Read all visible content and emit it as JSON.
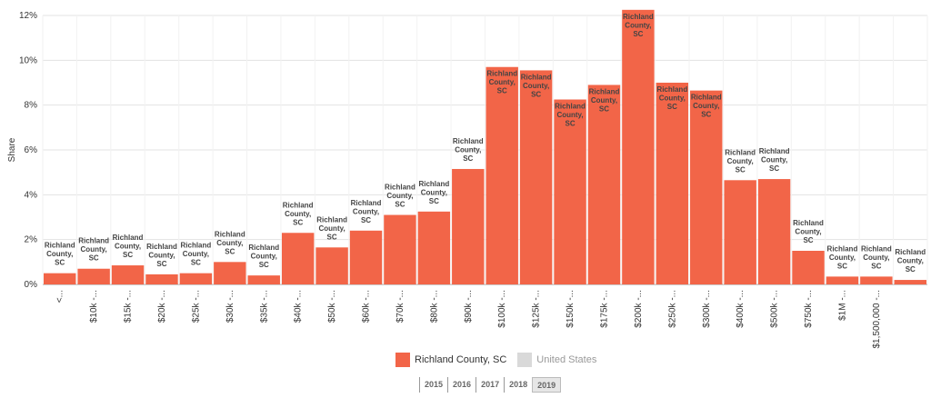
{
  "chart_data": {
    "type": "bar",
    "ylabel": "Share",
    "ylim": [
      0,
      12
    ],
    "yticks": [
      0,
      2,
      4,
      6,
      8,
      10,
      12
    ],
    "ytick_suffix": "%",
    "grid": true,
    "categories": [
      "<...",
      "$10k -...",
      "$15k -...",
      "$20k -...",
      "$25k -...",
      "$30k -...",
      "$35k -...",
      "$40k -...",
      "$50k -...",
      "$60k -...",
      "$70k -...",
      "$80k -...",
      "$90k -...",
      "$100k -...",
      "$125k -...",
      "$150k -...",
      "$175k -...",
      "$200k -...",
      "$250k -...",
      "$300k -...",
      "$400k -...",
      "$500k -...",
      "$750k -...",
      "$1M -...",
      "$1,500,000 -...",
      ""
    ],
    "series": [
      {
        "name": "Richland County, SC",
        "color": "#f26548",
        "values": [
          0.5,
          0.7,
          0.85,
          0.45,
          0.5,
          1.0,
          0.4,
          2.3,
          1.65,
          2.4,
          3.1,
          3.25,
          5.15,
          9.7,
          9.55,
          8.25,
          8.9,
          12.25,
          9.0,
          8.65,
          4.65,
          4.7,
          1.5,
          0.35,
          0.35,
          0.2
        ],
        "bar_label": "Richland County, SC"
      }
    ]
  },
  "legend": {
    "items": [
      {
        "label": "Richland County, SC",
        "color": "#f26548",
        "active": true
      },
      {
        "label": "United States",
        "color": "#d9d9d9",
        "active": false
      }
    ]
  },
  "years": {
    "items": [
      "2015",
      "2016",
      "2017",
      "2018",
      "2019"
    ],
    "active": "2019"
  }
}
